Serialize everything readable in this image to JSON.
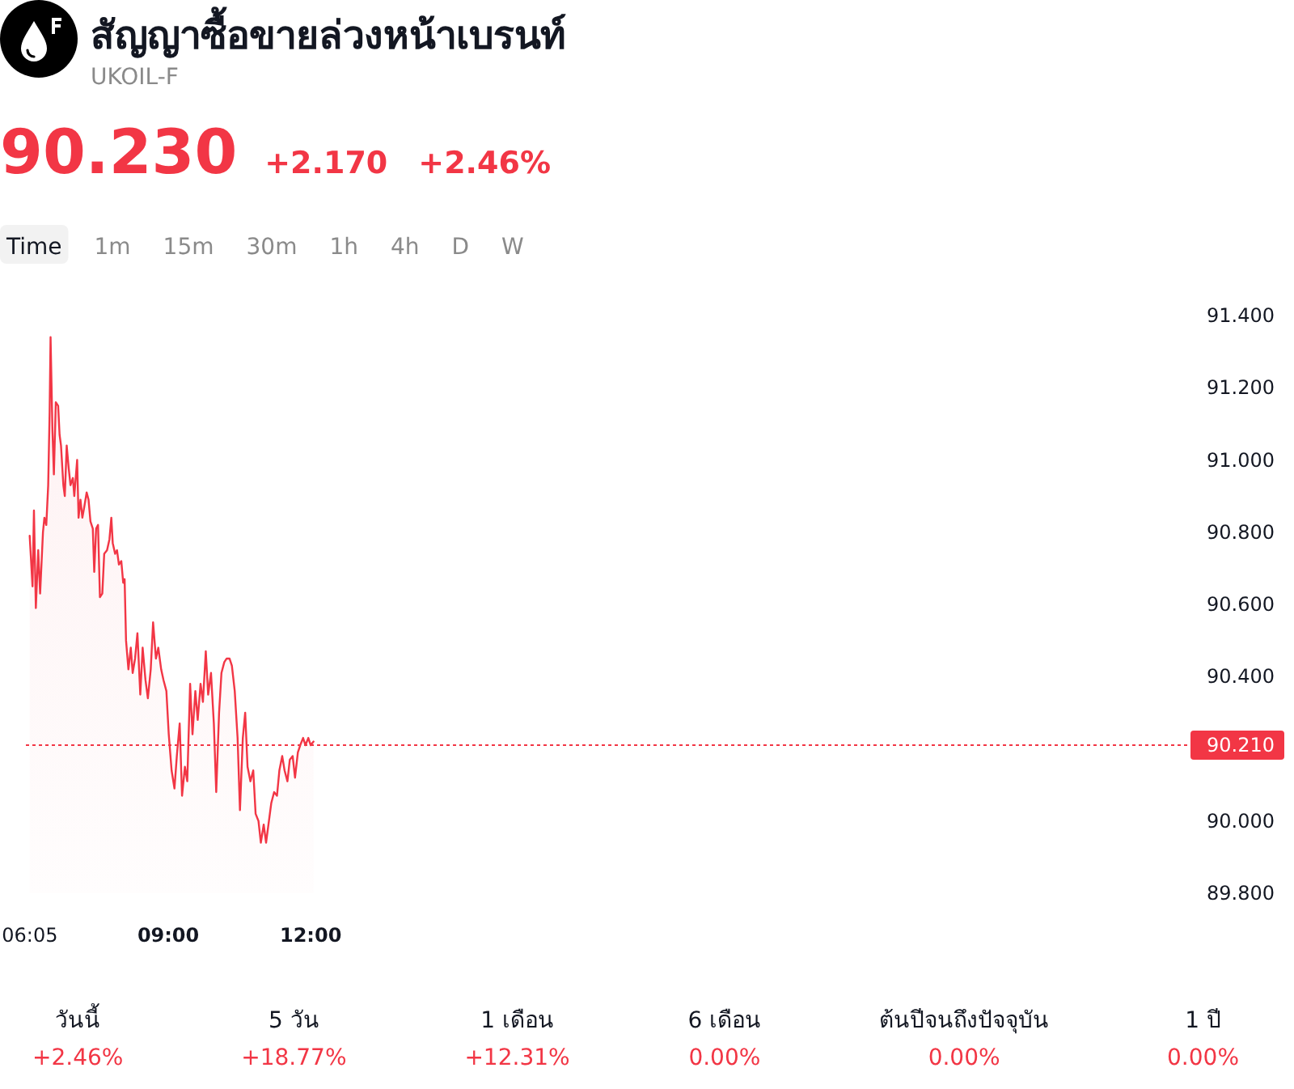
{
  "chart_data": [
    {
      "type": "area",
      "title": "สัญญาซื้อขายล่วงหน้าเบรนท์",
      "subtitle": "UKOIL-F",
      "annotations": [
        "90.230",
        "+2.170",
        "+2.46%",
        "Time",
        "1m",
        "15m",
        "30m",
        "1h",
        "4h",
        "D",
        "W"
      ],
      "color": "#f23645",
      "x": [
        6.08,
        6.14,
        6.17,
        6.21,
        6.26,
        6.3,
        6.36,
        6.39,
        6.43,
        6.47,
        6.5,
        6.52,
        6.56,
        6.59,
        6.63,
        6.68,
        6.71,
        6.74,
        6.79,
        6.82,
        6.86,
        6.9,
        6.94,
        6.99,
        7.02,
        7.08,
        7.11,
        7.15,
        7.19,
        7.23,
        7.28,
        7.32,
        7.36,
        7.41,
        7.44,
        7.48,
        7.52,
        7.56,
        7.61,
        7.65,
        7.71,
        7.76,
        7.8,
        7.83,
        7.88,
        7.92,
        7.96,
        8.01,
        8.05,
        8.08,
        8.11,
        8.16,
        8.21,
        8.25,
        8.3,
        8.35,
        8.41,
        8.46,
        8.52,
        8.57,
        8.63,
        8.68,
        8.74,
        8.79,
        8.85,
        8.9,
        8.96,
        9.01,
        9.07,
        9.13,
        9.18,
        9.24,
        9.29,
        9.35,
        9.4,
        9.46,
        9.51,
        9.57,
        9.62,
        9.68,
        9.73,
        9.79,
        9.84,
        9.9,
        9.96,
        10.01,
        10.07,
        10.12,
        10.18,
        10.23,
        10.29,
        10.34,
        10.4,
        10.46,
        10.51,
        10.57,
        10.62,
        10.67,
        10.73,
        10.79,
        10.84,
        10.9,
        10.95,
        11.01,
        11.06,
        11.12,
        11.17,
        11.23,
        11.29,
        11.34,
        11.4,
        11.45,
        11.51,
        11.56,
        11.62,
        11.67,
        11.73,
        11.78,
        11.84,
        11.89,
        11.95,
        12.0,
        12.06
      ],
      "values": [
        90.79,
        90.65,
        90.86,
        90.59,
        90.75,
        90.63,
        90.8,
        90.84,
        90.82,
        90.93,
        91.13,
        91.34,
        91.08,
        90.96,
        91.16,
        91.15,
        91.07,
        91.04,
        90.93,
        90.9,
        91.04,
        90.98,
        90.93,
        90.95,
        90.9,
        91.0,
        90.84,
        90.89,
        90.84,
        90.87,
        90.91,
        90.89,
        90.83,
        90.81,
        90.69,
        90.81,
        90.82,
        90.62,
        90.63,
        90.74,
        90.75,
        90.78,
        90.84,
        90.77,
        90.74,
        90.75,
        90.71,
        90.72,
        90.66,
        90.67,
        90.5,
        90.42,
        90.48,
        90.41,
        90.45,
        90.52,
        90.35,
        90.48,
        90.39,
        90.34,
        90.42,
        90.55,
        90.45,
        90.48,
        90.42,
        90.39,
        90.36,
        90.24,
        90.14,
        90.09,
        90.18,
        90.27,
        90.07,
        90.15,
        90.11,
        90.38,
        90.24,
        90.36,
        90.28,
        90.38,
        90.33,
        90.47,
        90.35,
        90.41,
        90.27,
        90.08,
        90.3,
        90.41,
        90.44,
        90.45,
        90.45,
        90.43,
        90.36,
        90.23,
        90.03,
        90.23,
        90.3,
        90.15,
        90.11,
        90.14,
        90.02,
        90.0,
        89.94,
        89.99,
        89.94,
        90.0,
        90.05,
        90.08,
        90.07,
        90.14,
        90.18,
        90.14,
        90.11,
        90.17,
        90.18,
        90.12,
        90.19,
        90.21,
        90.23,
        90.21,
        90.23,
        90.21,
        90.22
      ],
      "xlim": [
        6.0,
        30.5
      ],
      "xticks": [
        {
          "value": 6.0833,
          "label": "06:05"
        },
        {
          "value": 9,
          "label": "09:00"
        },
        {
          "value": 12,
          "label": "12:00"
        }
      ],
      "ylim": [
        89.8,
        91.4
      ],
      "yticks": [
        {
          "value": 89.8,
          "label": "89.800"
        },
        {
          "value": 90,
          "label": "90.000"
        },
        {
          "value": 90.4,
          "label": "90.400"
        },
        {
          "value": 90.6,
          "label": "90.600"
        },
        {
          "value": 90.8,
          "label": "90.800"
        },
        {
          "value": 91,
          "label": "91.000"
        },
        {
          "value": 91.2,
          "label": "91.200"
        },
        {
          "value": 91.4,
          "label": "91.400"
        }
      ],
      "ref_lines": [
        {
          "axis": "y",
          "value": 90.21,
          "label": "90.210",
          "color": "#f23645",
          "line_style": "dotted"
        }
      ]
    },
    {
      "type": "other",
      "color": "#f23645",
      "annotations": [
        "วันนี้",
        "+2.46%",
        "5 วัน",
        "+18.77%",
        "1 เดือน",
        "+12.31%",
        "6 เดือน",
        "0.00%",
        "ต้นปีจนถึงปัจจุบัน",
        "0.00%",
        "1 ปี",
        "0.00%"
      ]
    }
  ]
}
